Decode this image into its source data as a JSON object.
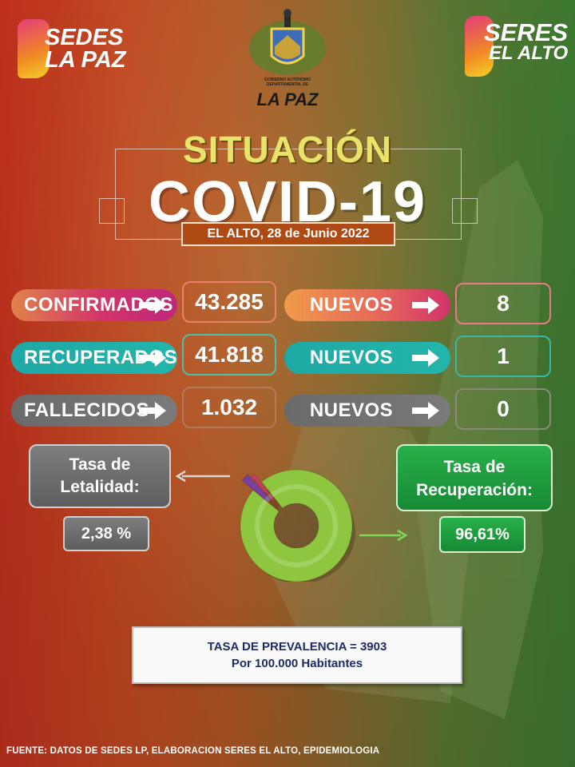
{
  "logos": {
    "left_line1": "SEDES",
    "left_line2": "LA PAZ",
    "center_line1": "GOBIERNO AUTÓNOMO DEPARTAMENTAL DE",
    "center_line2": "LA PAZ",
    "right_line1": "SERES",
    "right_line2": "EL ALTO"
  },
  "header": {
    "title_top": "SITUACIÓN",
    "title_main": "COVID-19",
    "date": "EL ALTO, 28 de Junio 2022"
  },
  "stats": [
    {
      "label": "CONFIRMADOS",
      "value": "43.285",
      "new_label": "NUEVOS",
      "new_value": "8"
    },
    {
      "label": "RECUPERADOS",
      "value": "41.818",
      "new_label": "NUEVOS",
      "new_value": "1"
    },
    {
      "label": "FALLECIDOS",
      "value": "1.032",
      "new_label": "NUEVOS",
      "new_value": "0"
    }
  ],
  "rates": {
    "lethality_label": "Tasa de Letalidad:",
    "lethality_value": "2,38 %",
    "recovery_label": "Tasa de Recuperación:",
    "recovery_value": "96,61%"
  },
  "donut": {
    "recovered_pct": 96.61,
    "lethality_pct": 2.38,
    "colors": {
      "recovered": "#8ec63f",
      "deceased": "#7a3fa0",
      "other": "#d03a6a"
    }
  },
  "prevalence": {
    "line1": "TASA DE PREVALENCIA = 3903",
    "line2": "Por 100.000 Habitantes"
  },
  "footer": {
    "source": "FUENTE: DATOS DE SEDES LP, ELABORACION SERES EL ALTO, EPIDEMIOLOGIA"
  },
  "colors": {
    "confirmados": "#d2336a",
    "recuperados": "#1fa8a6",
    "fallecidos": "#6e6e6e",
    "nuevos_confirmados": "#e8804a",
    "recovery_card": "#1f9a3c",
    "lethality_card": "#6e6e6e"
  }
}
